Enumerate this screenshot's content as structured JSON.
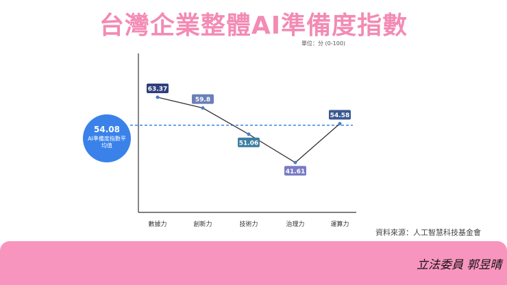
{
  "title": "台灣企業整體AI準備度指數",
  "unit_note": "單位：分 (0-100)",
  "source": "資料來源：人工智慧科技基金會",
  "signature": "立法委員 郭昱晴",
  "colors": {
    "title": "#f38bb4",
    "band": "#f895bf",
    "avg_bubble": "#3a82ea",
    "avg_line": "#3a82ea",
    "line": "#333333",
    "point": "#4a7cc9",
    "label_colors": [
      "#2f3f7e",
      "#6b7fb7",
      "#3f7fa3",
      "#7a7bc4",
      "#3a5a8f"
    ]
  },
  "chart_data": {
    "type": "line",
    "title": "台灣企業整體AI準備度指數",
    "categories": [
      "數據力",
      "創新力",
      "技術力",
      "治理力",
      "運算力"
    ],
    "values": [
      63.37,
      59.8,
      51.06,
      41.61,
      54.58
    ],
    "value_labels": [
      "63.37",
      "59.8",
      "51.06",
      "41.61",
      "54.58"
    ],
    "average": {
      "value": 54.08,
      "value_label": "54.08",
      "label": "AI準備度指數平均值"
    },
    "ylim": [
      25,
      78
    ],
    "grid": false,
    "xlabel": "",
    "ylabel": ""
  }
}
